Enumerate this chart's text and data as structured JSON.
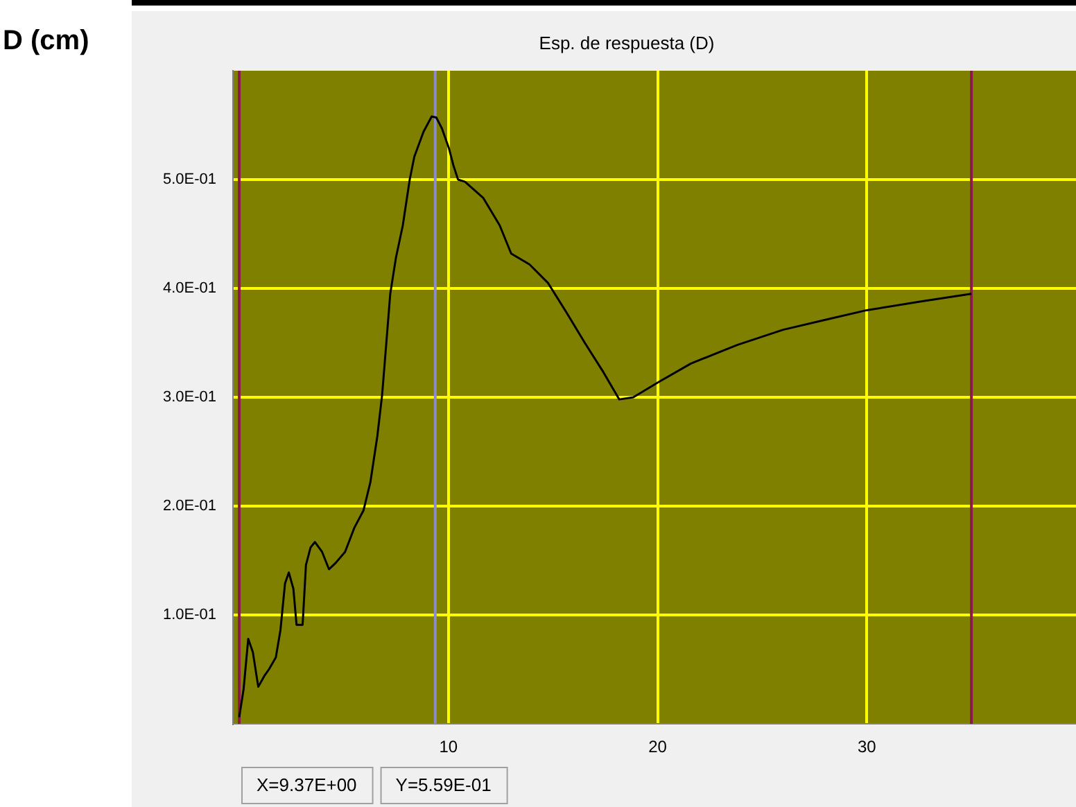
{
  "chart_data": {
    "type": "line",
    "title": "Esp. de respuesta (D)",
    "ylabel": "D (cm)",
    "xlim": [
      -0.3,
      40
    ],
    "xticks": [
      10,
      20,
      30
    ],
    "ylim": [
      0,
      0.6
    ],
    "yticks": [
      {
        "value": 0.1,
        "label": "1.0E-01"
      },
      {
        "value": 0.2,
        "label": "2.0E-01"
      },
      {
        "value": 0.3,
        "label": "3.0E-01"
      },
      {
        "value": 0.4,
        "label": "4.0E-01"
      },
      {
        "value": 0.5,
        "label": "5.0E-01"
      }
    ],
    "grid": true,
    "legend": false,
    "marker": "none",
    "line_style": "solid",
    "ref_lines": [
      {
        "axis": "x",
        "value": 0,
        "color": "#8b1a4a"
      },
      {
        "axis": "x",
        "value": 35,
        "color": "#8b1a4a"
      },
      {
        "axis": "x",
        "value": 9.37,
        "color": "#8c8cc8"
      }
    ],
    "annotations": [
      "X=9.37E+00",
      "Y=5.59E-01"
    ],
    "series": [
      {
        "color": "#000000",
        "x": [
          0,
          0.21,
          0.43,
          0.65,
          0.91,
          1.2,
          1.42,
          1.75,
          1.97,
          2.19,
          2.37,
          2.59,
          2.74,
          3.03,
          3.19,
          3.41,
          3.62,
          3.96,
          4.29,
          4.62,
          5.06,
          5.5,
          5.94,
          6.27,
          6.6,
          6.83,
          7.04,
          7.22,
          7.49,
          7.82,
          8.15,
          8.37,
          8.81,
          9.2,
          9.42,
          9.69,
          10.02,
          10.24,
          10.46,
          10.79,
          11.67,
          12.45,
          13,
          13.88,
          14.76,
          15.64,
          16.52,
          17.41,
          18.17,
          18.84,
          20.05,
          21.59,
          23.8,
          26,
          28.2,
          30,
          32.6,
          35
        ],
        "values": [
          0.006,
          0.032,
          0.078,
          0.066,
          0.034,
          0.044,
          0.05,
          0.061,
          0.086,
          0.129,
          0.139,
          0.124,
          0.091,
          0.091,
          0.146,
          0.162,
          0.167,
          0.158,
          0.142,
          0.148,
          0.158,
          0.18,
          0.196,
          0.222,
          0.264,
          0.302,
          0.352,
          0.395,
          0.428,
          0.458,
          0.5,
          0.521,
          0.544,
          0.558,
          0.557,
          0.547,
          0.529,
          0.513,
          0.5,
          0.498,
          0.483,
          0.458,
          0.432,
          0.422,
          0.405,
          0.378,
          0.35,
          0.323,
          0.298,
          0.3,
          0.314,
          0.331,
          0.348,
          0.362,
          0.372,
          0.38,
          0.388,
          0.395
        ]
      }
    ]
  }
}
